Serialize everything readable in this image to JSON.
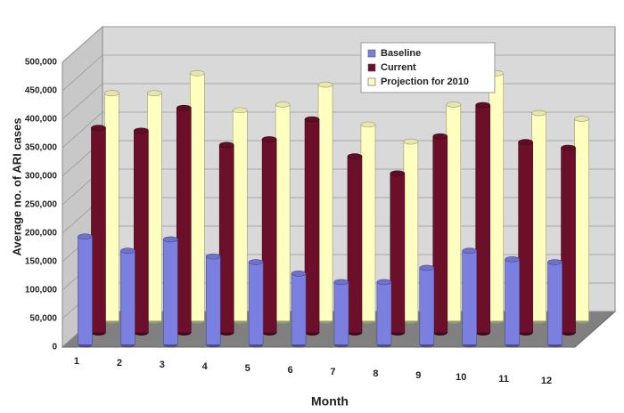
{
  "chart_data": {
    "type": "bar3d",
    "x_label": "Month",
    "y_label": "Average no. of ARI cases",
    "categories": [
      "1",
      "2",
      "3",
      "4",
      "5",
      "6",
      "7",
      "8",
      "9",
      "10",
      "11",
      "12"
    ],
    "series": [
      {
        "name": "Baseline",
        "color": "#7b7fe0",
        "values": [
          190000,
          165000,
          185000,
          155000,
          145000,
          125000,
          110000,
          110000,
          135000,
          165000,
          150000,
          145000
        ]
      },
      {
        "name": "Current",
        "color": "#6b0f2a",
        "values": [
          360000,
          355000,
          395000,
          330000,
          340000,
          375000,
          310000,
          280000,
          345000,
          400000,
          335000,
          325000
        ]
      },
      {
        "name": "Projection for 2010",
        "color": "#ffffc0",
        "values": [
          400000,
          400000,
          435000,
          370000,
          380000,
          415000,
          345000,
          315000,
          380000,
          435000,
          365000,
          355000
        ]
      }
    ],
    "ylim": [
      0,
      500000
    ],
    "yticks": [
      0,
      {
        "value": 50000,
        "label": "50,000"
      },
      {
        "value": 100000,
        "label": "100,000"
      },
      {
        "value": 150000,
        "label": "150,000"
      },
      {
        "value": 200000,
        "label": "200,000"
      },
      {
        "value": 250000,
        "label": "250,000"
      },
      {
        "value": 300000,
        "label": "300,000"
      },
      {
        "value": 350000,
        "label": "350,000"
      },
      {
        "value": 400000,
        "label": "400,000"
      },
      {
        "value": 450000,
        "label": "450,000"
      },
      {
        "value": 500000,
        "label": "500,000"
      }
    ],
    "grid": true,
    "legend": "top-right"
  }
}
